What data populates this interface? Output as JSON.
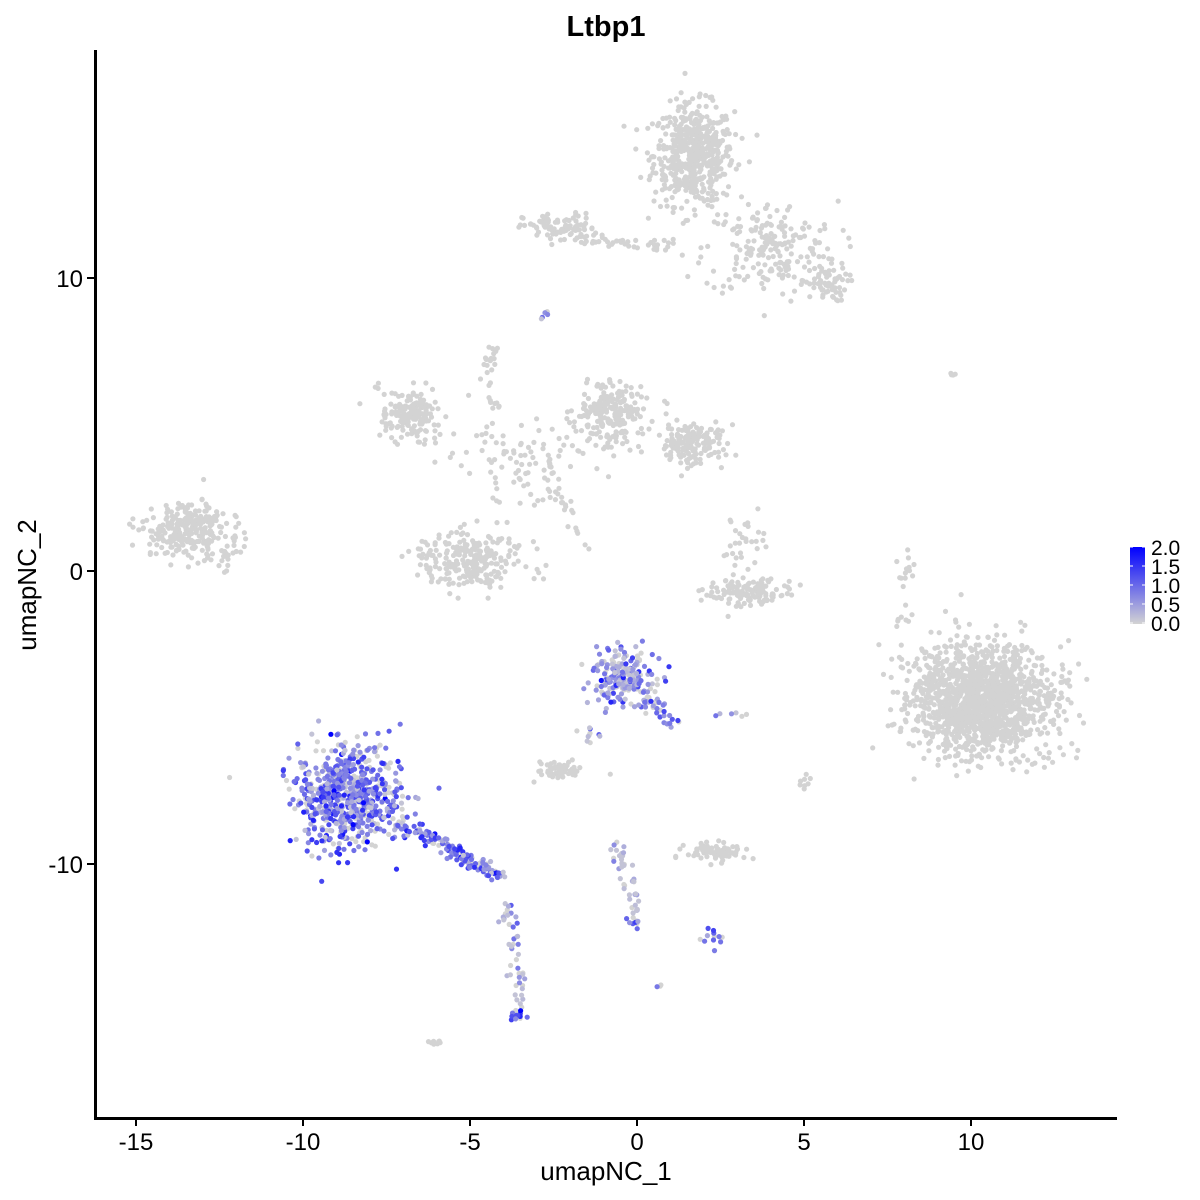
{
  "chart_data": {
    "type": "scatter",
    "title": "Ltbp1",
    "xlabel": "umapNC_1",
    "ylabel": "umapNC_2",
    "xlim": [
      -16.5,
      14.4
    ],
    "ylim": [
      -18.6,
      17.9
    ],
    "xticks": [
      -15,
      -10,
      -5,
      0,
      5,
      10
    ],
    "yticks": [
      -10,
      0,
      10
    ],
    "xtick_labels": [
      "-15",
      "-10",
      "-5",
      "0",
      "5",
      "10"
    ],
    "ytick_labels": [
      "-10",
      "0",
      "10"
    ],
    "grid": false,
    "legend": {
      "placement": "right",
      "type": "colorbar",
      "range": [
        0,
        2.0
      ],
      "ticks": [
        "0.0",
        "0.5",
        "1.0",
        "1.5",
        "2.0"
      ],
      "low_color": "#d3d3d3",
      "high_color": "#0000ff"
    },
    "clusters": [
      {
        "kind": "blob",
        "cx": 1.7,
        "cy": 14.2,
        "sx": 0.6,
        "sy": 0.85,
        "n": 550,
        "expr": 0
      },
      {
        "kind": "blob",
        "cx": 4.0,
        "cy": 11.0,
        "sx": 1.0,
        "sy": 0.8,
        "n": 200,
        "expr": 0
      },
      {
        "kind": "blob",
        "cx": 5.6,
        "cy": 9.8,
        "sx": 0.35,
        "sy": 0.3,
        "n": 60,
        "expr": 0
      },
      {
        "kind": "blob",
        "cx": -2.3,
        "cy": 11.7,
        "sx": 0.55,
        "sy": 0.25,
        "n": 90,
        "expr": 0
      },
      {
        "kind": "segment",
        "x1": -1.8,
        "y1": 11.3,
        "x2": 1.0,
        "y2": 11.1,
        "n": 40,
        "expr": 0
      },
      {
        "kind": "blob",
        "cx": -2.7,
        "cy": 8.8,
        "sx": 0.1,
        "sy": 0.1,
        "n": 5,
        "expr": 0.4
      },
      {
        "kind": "blob",
        "cx": -6.8,
        "cy": 5.3,
        "sx": 0.45,
        "sy": 0.45,
        "n": 160,
        "expr": 0
      },
      {
        "kind": "blob",
        "cx": -4.4,
        "cy": 7.3,
        "sx": 0.15,
        "sy": 0.2,
        "n": 15,
        "expr": 0
      },
      {
        "kind": "blob",
        "cx": -0.8,
        "cy": 5.4,
        "sx": 0.5,
        "sy": 0.55,
        "n": 220,
        "expr": 0
      },
      {
        "kind": "blob",
        "cx": 1.6,
        "cy": 4.3,
        "sx": 0.5,
        "sy": 0.35,
        "n": 170,
        "expr": 0
      },
      {
        "kind": "blob",
        "cx": -3.3,
        "cy": 3.8,
        "sx": 1.3,
        "sy": 0.7,
        "n": 90,
        "expr": 0
      },
      {
        "kind": "segment",
        "x1": -4.5,
        "y1": 7.0,
        "x2": -4.0,
        "y2": 3.5,
        "n": 20,
        "expr": 0
      },
      {
        "kind": "segment",
        "x1": -2.5,
        "y1": 2.8,
        "x2": -1.4,
        "y2": 0.7,
        "n": 20,
        "expr": 0
      },
      {
        "kind": "blob",
        "cx": -5.0,
        "cy": 0.4,
        "sx": 0.8,
        "sy": 0.5,
        "n": 260,
        "expr": 0
      },
      {
        "kind": "blob",
        "cx": -13.5,
        "cy": 1.4,
        "sx": 0.6,
        "sy": 0.45,
        "n": 260,
        "expr": 0
      },
      {
        "kind": "blob",
        "cx": -12.3,
        "cy": 0.6,
        "sx": 0.3,
        "sy": 0.5,
        "n": 25,
        "expr": 0
      },
      {
        "kind": "blob",
        "cx": 3.4,
        "cy": -0.7,
        "sx": 0.6,
        "sy": 0.25,
        "n": 130,
        "expr": 0
      },
      {
        "kind": "blob",
        "cx": 3.2,
        "cy": 0.8,
        "sx": 0.3,
        "sy": 0.4,
        "n": 30,
        "expr": 0
      },
      {
        "kind": "blob",
        "cx": 10.3,
        "cy": -4.4,
        "sx": 1.05,
        "sy": 0.95,
        "n": 1500,
        "expr": 0
      },
      {
        "kind": "segment",
        "x1": 7.9,
        "y1": -2.0,
        "x2": 8.2,
        "y2": 1.0,
        "n": 20,
        "expr": 0
      },
      {
        "kind": "blob",
        "cx": 9.4,
        "cy": 6.7,
        "sx": 0.15,
        "sy": 0.05,
        "n": 4,
        "expr": 0
      },
      {
        "kind": "blob",
        "cx": -8.6,
        "cy": -7.7,
        "sx": 0.75,
        "sy": 0.85,
        "n": 700,
        "expr": 0.9
      },
      {
        "kind": "segment",
        "x1": -7.2,
        "y1": -8.6,
        "x2": -4.0,
        "y2": -10.4,
        "n": 160,
        "expr": 0.9
      },
      {
        "kind": "segment",
        "x1": -3.9,
        "y1": -11.0,
        "x2": -3.4,
        "y2": -15.2,
        "n": 45,
        "expr": 0.4
      },
      {
        "kind": "blob",
        "cx": -3.6,
        "cy": -15.2,
        "sx": 0.15,
        "sy": 0.1,
        "n": 15,
        "expr": 1.2
      },
      {
        "kind": "blob",
        "cx": -0.4,
        "cy": -3.6,
        "sx": 0.45,
        "sy": 0.45,
        "n": 210,
        "expr": 0.6
      },
      {
        "kind": "segment",
        "x1": 0.1,
        "y1": -4.0,
        "x2": 1.2,
        "y2": -5.4,
        "n": 30,
        "expr": 0.8
      },
      {
        "kind": "segment",
        "x1": -0.8,
        "y1": -4.2,
        "x2": -1.6,
        "y2": -5.9,
        "n": 15,
        "expr": 0.5
      },
      {
        "kind": "blob",
        "cx": -2.3,
        "cy": -6.8,
        "sx": 0.35,
        "sy": 0.15,
        "n": 60,
        "expr": 0
      },
      {
        "kind": "blob",
        "cx": 2.4,
        "cy": -9.6,
        "sx": 0.45,
        "sy": 0.15,
        "n": 80,
        "expr": 0
      },
      {
        "kind": "segment",
        "x1": -0.6,
        "y1": -9.4,
        "x2": 0.0,
        "y2": -11.8,
        "n": 40,
        "expr": 0.15
      },
      {
        "kind": "blob",
        "cx": -0.1,
        "cy": -12.0,
        "sx": 0.1,
        "sy": 0.1,
        "n": 10,
        "expr": 1.1
      },
      {
        "kind": "blob",
        "cx": 2.3,
        "cy": -12.5,
        "sx": 0.2,
        "sy": 0.2,
        "n": 12,
        "expr": 0.8
      },
      {
        "kind": "blob",
        "cx": 0.7,
        "cy": -14.1,
        "sx": 0.05,
        "sy": 0.05,
        "n": 3,
        "expr": 1.0
      },
      {
        "kind": "blob",
        "cx": 3.0,
        "cy": -4.9,
        "sx": 0.3,
        "sy": 0.05,
        "n": 6,
        "expr": 0.3
      },
      {
        "kind": "blob",
        "cx": 5.0,
        "cy": -7.2,
        "sx": 0.1,
        "sy": 0.2,
        "n": 8,
        "expr": 0
      },
      {
        "kind": "blob",
        "cx": -6.0,
        "cy": -16.1,
        "sx": 0.1,
        "sy": 0.05,
        "n": 8,
        "expr": 0
      }
    ]
  }
}
